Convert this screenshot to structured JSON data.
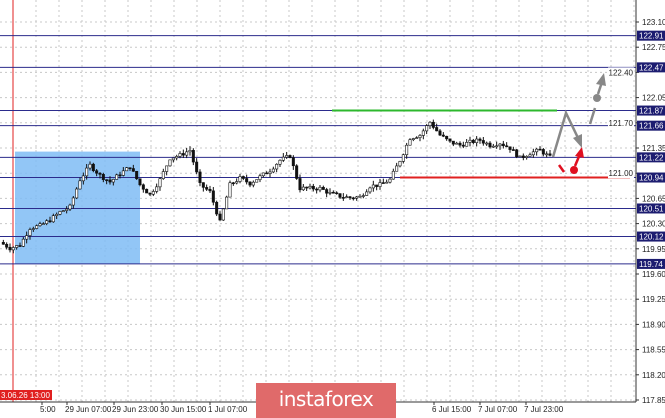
{
  "chart_data": {
    "type": "candlestick",
    "title": "",
    "ylim": [
      117.78,
      123.4
    ],
    "y_ticks": [
      "123.10",
      "122.75",
      "122.40",
      "122.05",
      "121.70",
      "121.35",
      "121.00",
      "120.65",
      "120.30",
      "119.95",
      "119.60",
      "119.25",
      "118.90",
      "118.55",
      "118.20",
      "117.85"
    ],
    "x_tick_labels": [
      "3.06.26 13:00",
      "5:00",
      "29 Jun 07:00",
      "29 Jun 23:00",
      "30 Jun 15:00",
      "1 Jul 07:00",
      "6 Jul 15:00",
      "7 Jul 07:00",
      "7 Jul 23:00"
    ],
    "closes": [
      120.04,
      119.96,
      120.0,
      120.24,
      120.27,
      120.35,
      120.46,
      120.53,
      120.91,
      121.11,
      120.97,
      120.88,
      120.99,
      121.09,
      120.84,
      120.7,
      120.91,
      121.21,
      121.25,
      121.32,
      120.84,
      120.74,
      120.32,
      120.84,
      120.93,
      120.86,
      120.95,
      121.04,
      121.18,
      121.24,
      120.79,
      120.79,
      120.79,
      120.72,
      120.68,
      120.66,
      120.67,
      120.82,
      120.84,
      120.91,
      121.18,
      121.49,
      121.53,
      121.71,
      121.53,
      121.43,
      121.39,
      121.43,
      121.46,
      121.39,
      121.42,
      121.35,
      121.21,
      121.28,
      121.32,
      121.22
    ],
    "levels": [
      {
        "value": "122.91",
        "price": 122.91,
        "color": "#2b2b8c"
      },
      {
        "value": "122.47",
        "price": 122.47,
        "color": "#2b2b8c"
      },
      {
        "value": "121.87",
        "price": 121.87,
        "color": "#2b2b8c"
      },
      {
        "value": "121.66",
        "price": 121.66,
        "color": "#2b2b8c"
      },
      {
        "value": "121.22",
        "price": 121.22,
        "color": "#2b2b8c"
      },
      {
        "value": "120.94",
        "price": 120.94,
        "color": "#2b2b8c"
      },
      {
        "value": "120.51",
        "price": 120.51,
        "color": "#2b2b8c"
      },
      {
        "value": "120.12",
        "price": 120.12,
        "color": "#2b2b8c"
      },
      {
        "value": "119.74",
        "price": 119.74,
        "color": "#2b2b8c"
      }
    ],
    "resistance_line": {
      "price": 121.87,
      "color": "#2db82d"
    },
    "support_line": {
      "price": 120.94,
      "color": "#e02020"
    },
    "highlight_zone": {
      "price_top": 121.3,
      "price_bottom": 119.74,
      "color": "#7fbcf5"
    },
    "forecast_arrows": {
      "neutral_color": "#888888",
      "bearish_color": "#e01020"
    },
    "grid": true,
    "label_bg_color": "#1c1c70"
  },
  "logo": {
    "text": "instaforex",
    "color": "#e06a6a"
  }
}
